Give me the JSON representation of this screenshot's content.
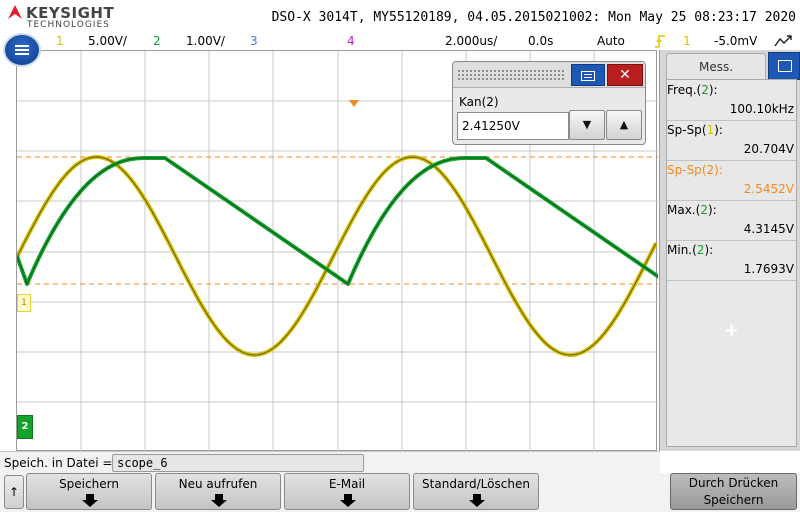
{
  "header": {
    "brand": "KEYSIGHT",
    "brand_sub": "TECHNOLOGIES",
    "title_line": "DSO-X 3014T, MY55120189, 04.05.2015021002: Mon May 25 08:23:17 2020"
  },
  "status_bar": {
    "ch1_num": "1",
    "ch1_scale": "5.00V/",
    "ch2_num": "2",
    "ch2_scale": "1.00V/",
    "ch3_num": "3",
    "ch4_num": "4",
    "timebase": "2.000us/",
    "delay": "0.0s",
    "trigger_mode": "Auto",
    "trigger_icon": "trigger-edge-icon",
    "trigger_source": "1",
    "trigger_level": "-5.0mV",
    "run_icon": "run-state-icon"
  },
  "colors": {
    "ch1": "#d4c000",
    "ch2": "#14a22d",
    "ch3": "#3a7de0",
    "ch4": "#c020c0",
    "cursor": "#f08a20",
    "grid": "#c8c8c8"
  },
  "screen": {
    "ch1_marker": "1",
    "ch2_marker": "2"
  },
  "cursor_dialog": {
    "label": "Kan(2)",
    "value": "2.41250V",
    "down_label": "▼",
    "up_label": "▲",
    "close_label": "✕"
  },
  "measurements": {
    "tab_label": "Mess.",
    "items": [
      {
        "name": "Freq.",
        "channel": "2",
        "value": "100.10kHz"
      },
      {
        "name": "Sp-Sp",
        "channel": "1",
        "value": "20.704V"
      },
      {
        "name": "Sp-Sp",
        "channel": "2",
        "value": "2.5452V"
      },
      {
        "name": "Max.",
        "channel": "2",
        "value": "4.3145V"
      },
      {
        "name": "Min.",
        "channel": "2",
        "value": "1.7693V"
      }
    ],
    "add_label": "+"
  },
  "save_bar": {
    "label": "Speich. in Datei =",
    "filename": "scope_6"
  },
  "softkeys": {
    "up_label": "↑",
    "save": "Speichern",
    "refresh": "Neu aufrufen",
    "email": "E-Mail",
    "default_clear": "Standard/Löschen",
    "print_line1": "Durch Drücken",
    "print_line2": "Speichern"
  }
}
